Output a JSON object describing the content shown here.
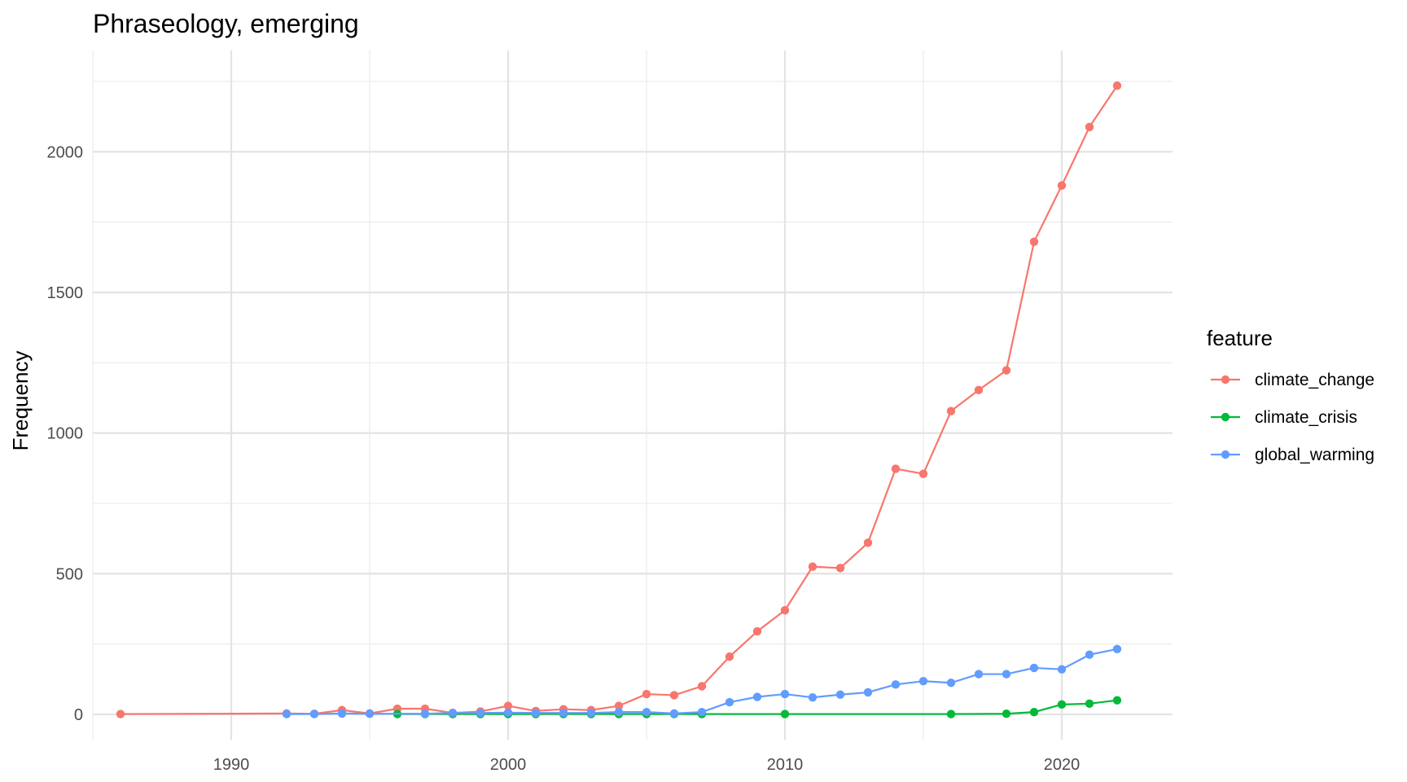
{
  "chart_data": {
    "type": "line",
    "title": "Phraseology, emerging",
    "xlabel": "",
    "ylabel": "Frequency",
    "xlim": [
      1985,
      2024
    ],
    "ylim": [
      -90,
      2360
    ],
    "x_ticks": [
      1990,
      2000,
      2010,
      2020
    ],
    "y_ticks": [
      0,
      500,
      1000,
      1500,
      2000
    ],
    "grid": true,
    "legend": {
      "title": "feature",
      "position": "right",
      "entries": [
        "climate_change",
        "climate_crisis",
        "global_warming"
      ]
    },
    "series": [
      {
        "name": "climate_change",
        "color": "#F8766D",
        "points": [
          [
            1986,
            1
          ],
          [
            1992,
            3
          ],
          [
            1993,
            2
          ],
          [
            1994,
            15
          ],
          [
            1995,
            3
          ],
          [
            1996,
            20
          ],
          [
            1997,
            20
          ],
          [
            1998,
            5
          ],
          [
            1999,
            10
          ],
          [
            2000,
            30
          ],
          [
            2001,
            12
          ],
          [
            2002,
            18
          ],
          [
            2003,
            15
          ],
          [
            2004,
            30
          ],
          [
            2005,
            72
          ],
          [
            2006,
            68
          ],
          [
            2007,
            100
          ],
          [
            2008,
            205
          ],
          [
            2009,
            295
          ],
          [
            2010,
            370
          ],
          [
            2011,
            525
          ],
          [
            2012,
            520
          ],
          [
            2013,
            610
          ],
          [
            2014,
            873
          ],
          [
            2015,
            855
          ],
          [
            2016,
            1078
          ],
          [
            2017,
            1153
          ],
          [
            2018,
            1223
          ],
          [
            2019,
            1680
          ],
          [
            2020,
            1880
          ],
          [
            2021,
            2088
          ],
          [
            2022,
            2235
          ]
        ]
      },
      {
        "name": "climate_crisis",
        "color": "#00BA38",
        "points": [
          [
            1996,
            1
          ],
          [
            1997,
            1
          ],
          [
            1998,
            1
          ],
          [
            1999,
            1
          ],
          [
            2000,
            1
          ],
          [
            2001,
            1
          ],
          [
            2002,
            1
          ],
          [
            2003,
            1
          ],
          [
            2004,
            1
          ],
          [
            2005,
            1
          ],
          [
            2006,
            1
          ],
          [
            2007,
            1
          ],
          [
            2010,
            1
          ],
          [
            2016,
            1
          ],
          [
            2018,
            2
          ],
          [
            2019,
            8
          ],
          [
            2020,
            35
          ],
          [
            2021,
            38
          ],
          [
            2022,
            50
          ]
        ]
      },
      {
        "name": "global_warming",
        "color": "#619CFF",
        "points": [
          [
            1992,
            1
          ],
          [
            1993,
            1
          ],
          [
            1994,
            3
          ],
          [
            1995,
            2
          ],
          [
            1997,
            2
          ],
          [
            1998,
            5
          ],
          [
            1999,
            5
          ],
          [
            2000,
            6
          ],
          [
            2001,
            5
          ],
          [
            2002,
            5
          ],
          [
            2003,
            5
          ],
          [
            2004,
            8
          ],
          [
            2005,
            8
          ],
          [
            2006,
            3
          ],
          [
            2007,
            8
          ],
          [
            2008,
            43
          ],
          [
            2009,
            62
          ],
          [
            2010,
            72
          ],
          [
            2011,
            60
          ],
          [
            2012,
            70
          ],
          [
            2013,
            78
          ],
          [
            2014,
            106
          ],
          [
            2015,
            118
          ],
          [
            2016,
            112
          ],
          [
            2017,
            143
          ],
          [
            2018,
            143
          ],
          [
            2019,
            165
          ],
          [
            2020,
            160
          ],
          [
            2021,
            212
          ],
          [
            2022,
            232
          ]
        ]
      }
    ]
  }
}
